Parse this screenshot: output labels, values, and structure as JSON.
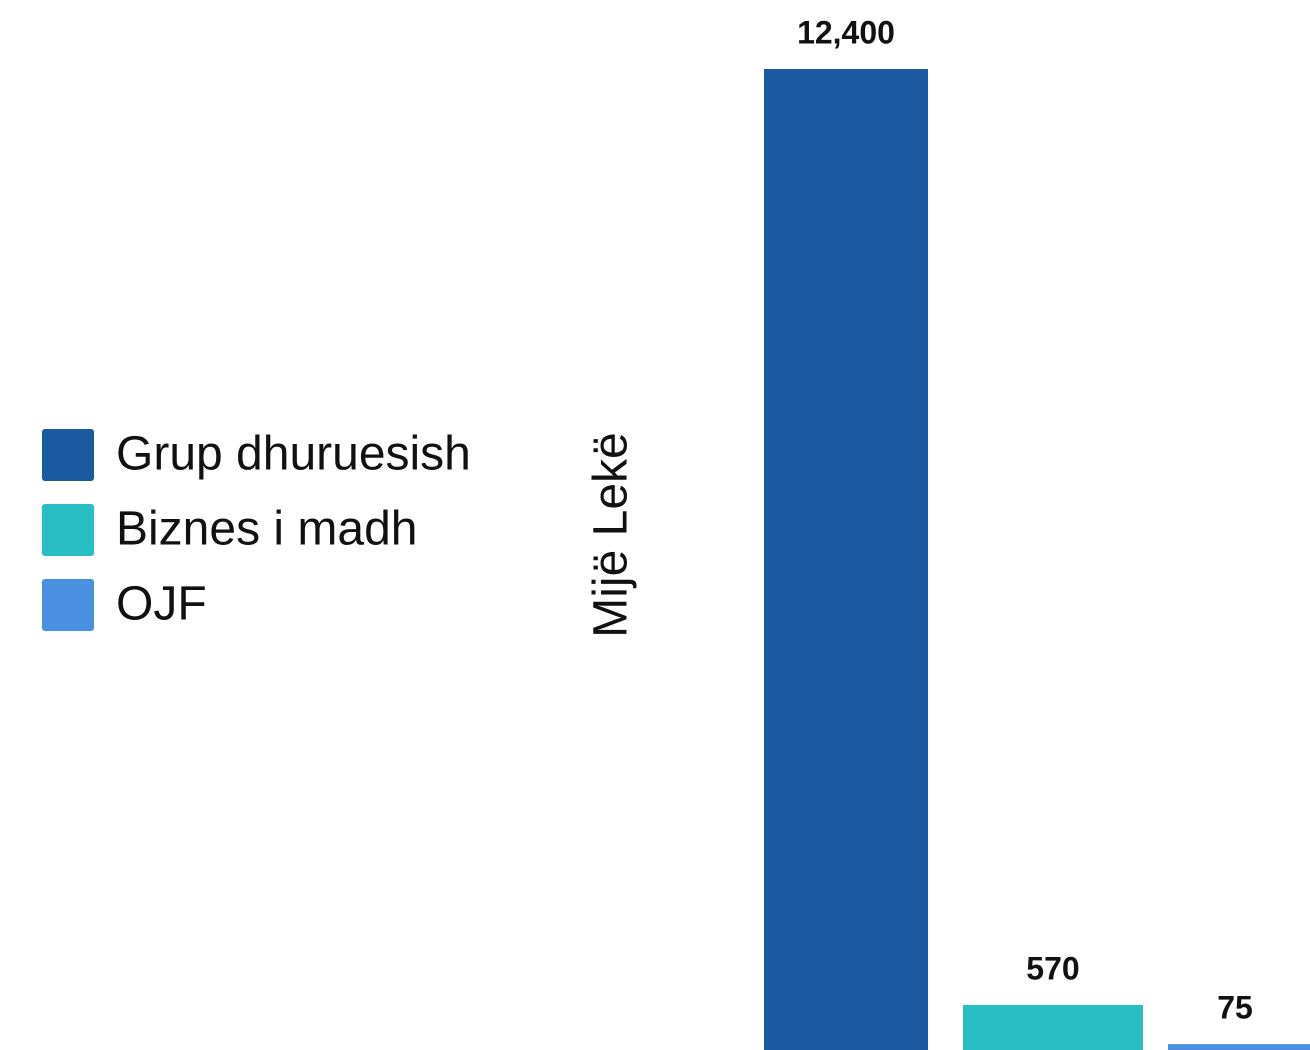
{
  "chart_data": {
    "type": "bar",
    "y_label": "Mijë Lekë",
    "categories": [
      "Grup dhuruesish",
      "Biznes i madh",
      "OJF"
    ],
    "values": [
      12400,
      570,
      75
    ],
    "value_labels": [
      "12,400",
      "570",
      "75"
    ],
    "colors": [
      "#1a5aa0",
      "#29bec3",
      "#4a90e0"
    ],
    "ylim": [
      0,
      12400
    ],
    "legend": "left"
  }
}
